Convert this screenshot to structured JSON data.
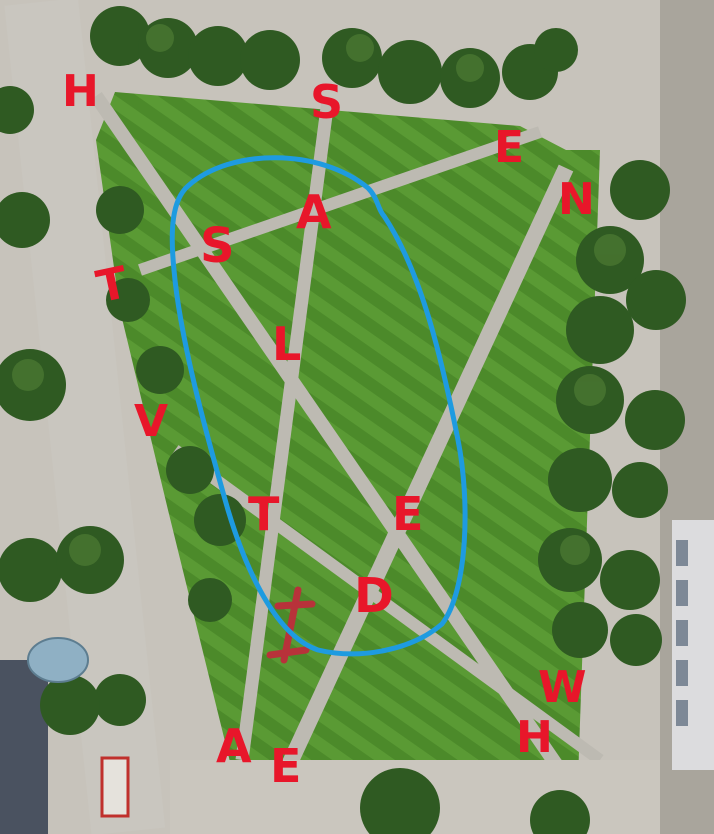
{
  "map": {
    "colors": {
      "grass": "#4e8c2a",
      "grass_light": "#5fa03a",
      "path": "#bcb9b1",
      "plaza": "#cfcbc3",
      "tree": "#2f5a22",
      "tree_light": "#4d7a33",
      "marker_ink": "#e8162a",
      "loop": "#1e9be0",
      "sculpture": "#b8323a"
    },
    "labels": [
      "H",
      "S",
      "E",
      "N",
      "T",
      "S",
      "A",
      "L",
      "V",
      "T",
      "E",
      "D",
      "W",
      "H",
      "A",
      "E"
    ],
    "highlighted_letters": [
      "S",
      "A",
      "L",
      "T",
      "E",
      "D"
    ]
  }
}
